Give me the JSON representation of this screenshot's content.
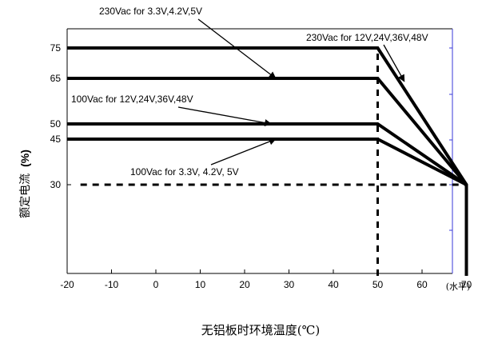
{
  "chart_data": {
    "type": "line",
    "title": "",
    "xlabel": "无铝板时环境温度(℃)",
    "xunit": "(水平)",
    "ylabel": "额定电流",
    "ylabel_unit": "(%)",
    "xlim": [
      -20,
      70
    ],
    "ylim": [
      0,
      85
    ],
    "x_ticks": [
      -20,
      -10,
      0,
      10,
      20,
      30,
      40,
      50,
      60,
      70
    ],
    "y_ticks": [
      30,
      45,
      50,
      65,
      75
    ],
    "grid": false,
    "series": [
      {
        "style": "solid",
        "x": [
          -20,
          50,
          70,
          70
        ],
        "y": [
          75,
          75,
          30,
          0
        ]
      },
      {
        "style": "solid",
        "x": [
          -20,
          50,
          70
        ],
        "y": [
          65,
          65,
          30
        ]
      },
      {
        "style": "solid",
        "x": [
          -20,
          50,
          70
        ],
        "y": [
          50,
          50,
          30
        ]
      },
      {
        "style": "solid",
        "x": [
          -20,
          50,
          70
        ],
        "y": [
          45,
          45,
          30
        ]
      },
      {
        "style": "dashed",
        "x": [
          -17,
          70
        ],
        "y": [
          30,
          30
        ]
      },
      {
        "style": "dashed",
        "x": [
          50,
          50
        ],
        "y": [
          0,
          75
        ]
      }
    ],
    "annotations": [
      {
        "text": "230Vac for 3.3V,4.2V,5V",
        "target_x": 27,
        "target_y": 65
      },
      {
        "text": "230Vac for 12V,24V,36V,48V",
        "target_x": 56,
        "target_y": 64
      },
      {
        "text": "100Vac for 12V,24V,36V,48V",
        "target_x": 26,
        "target_y": 50
      },
      {
        "text": "100Vac for 3.3V, 4.2V, 5V",
        "target_x": 27,
        "target_y": 45
      }
    ]
  }
}
